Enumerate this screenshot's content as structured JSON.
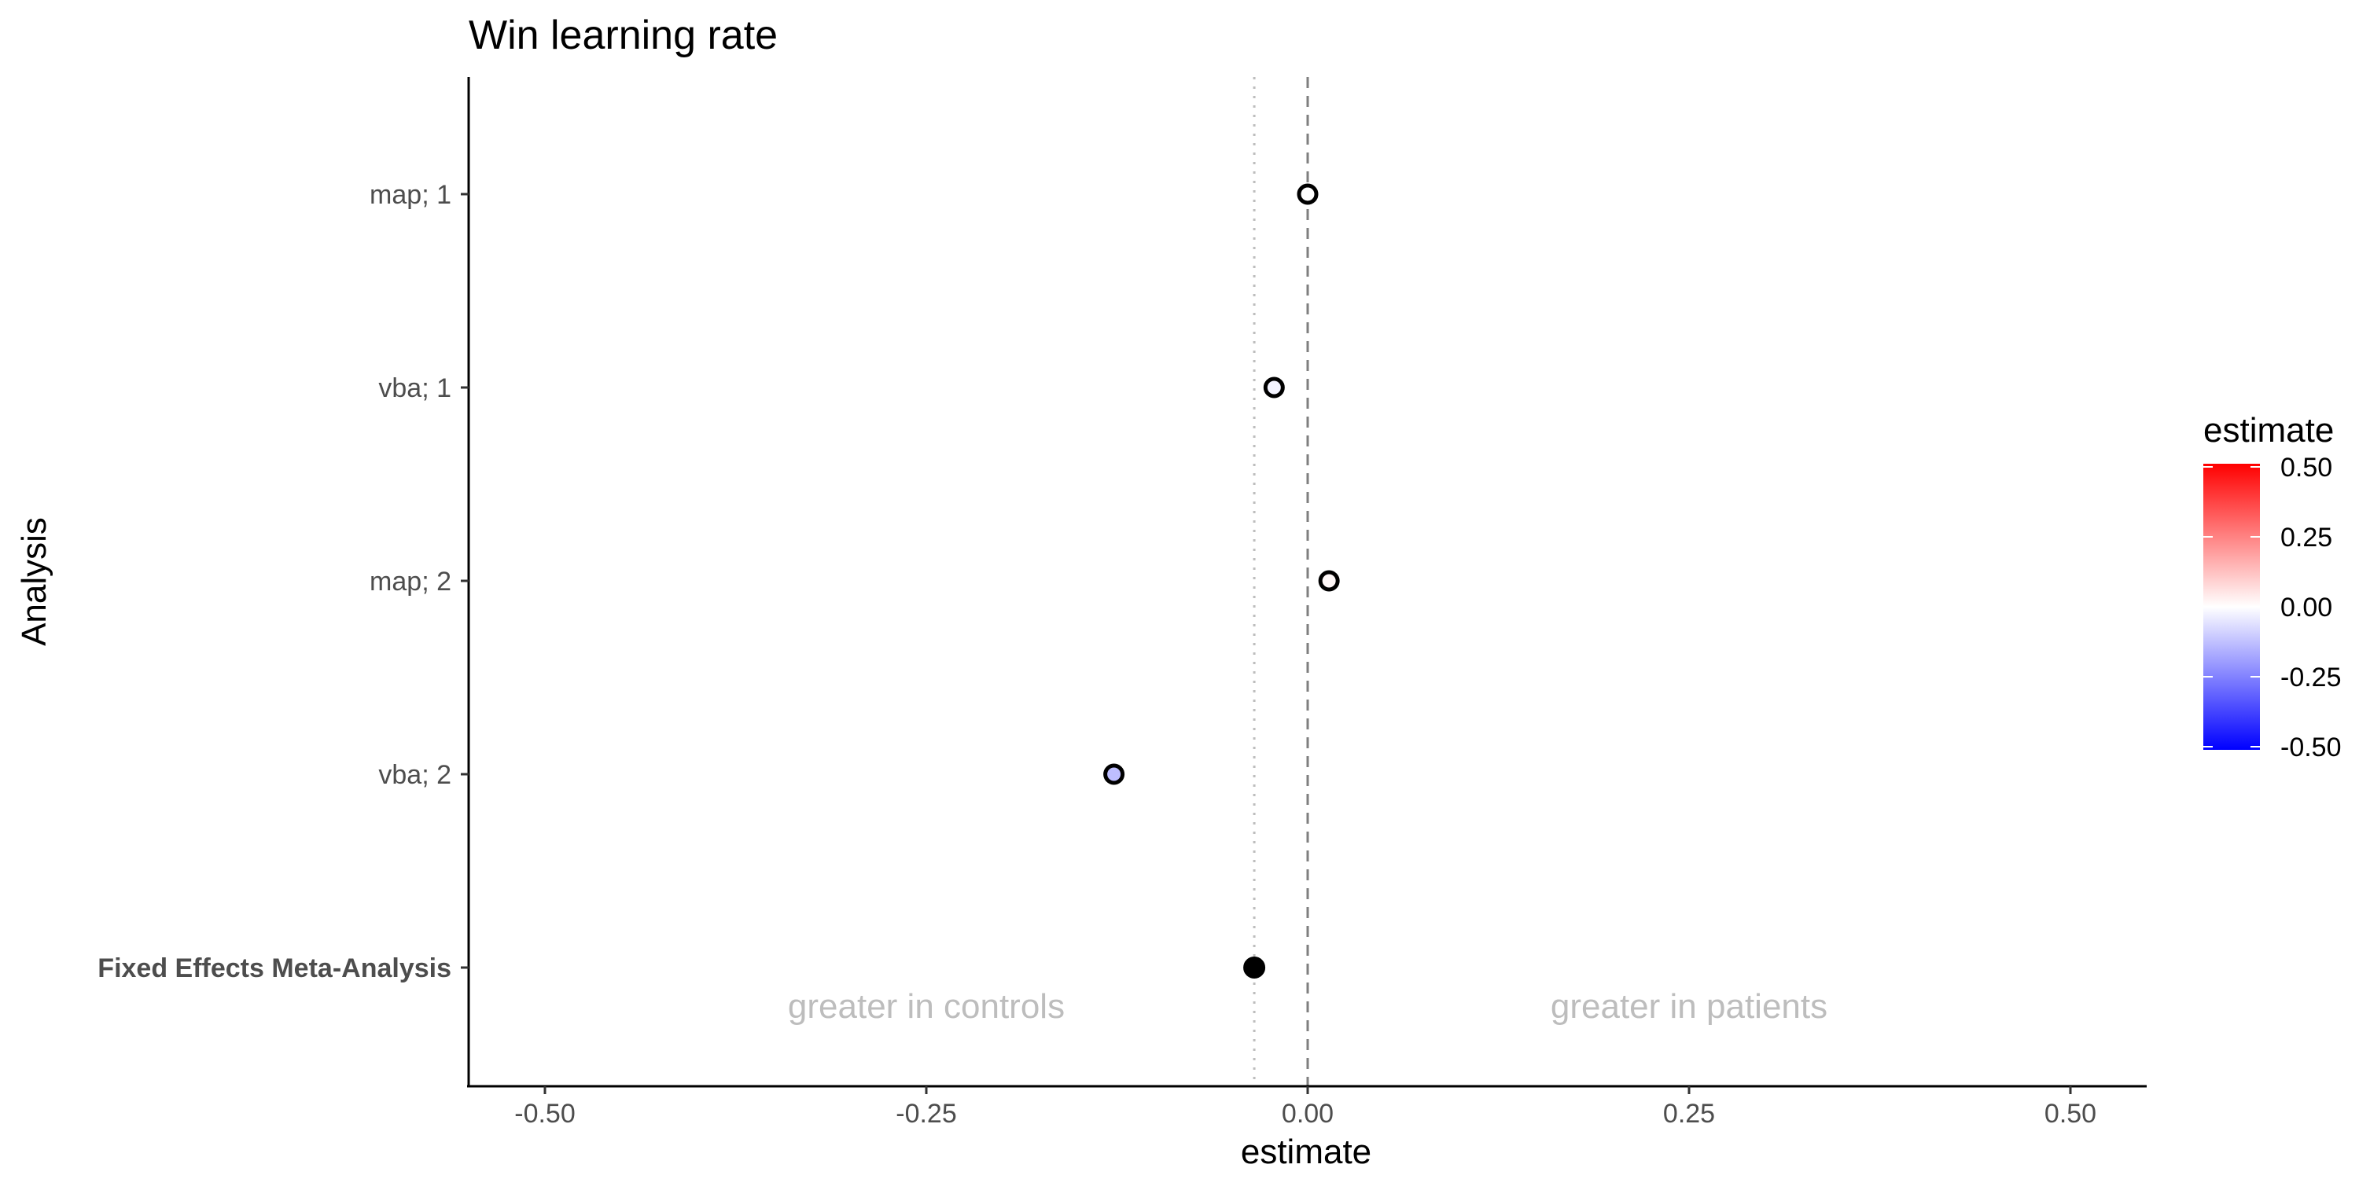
{
  "chart_data": {
    "type": "scatter",
    "title": "Win learning rate",
    "xlabel": "estimate",
    "ylabel": "Analysis",
    "xlim": [
      -0.55,
      0.55
    ],
    "x_ticks": [
      -0.5,
      -0.25,
      0,
      0.25,
      0.5
    ],
    "x_tick_labels": [
      "-0.50",
      "-0.25",
      "0.00",
      "0.25",
      "0.50"
    ],
    "categories": [
      "map; 1",
      "vba; 1",
      "map; 2",
      "vba; 2",
      "Fixed Effects Meta-Analysis"
    ],
    "summary_category": "Fixed Effects Meta-Analysis",
    "points": [
      {
        "label": "map; 1",
        "x": 0.0
      },
      {
        "label": "vba; 1",
        "x": -0.022
      },
      {
        "label": "map; 2",
        "x": 0.014
      },
      {
        "label": "vba; 2",
        "x": -0.127
      },
      {
        "label": "Fixed Effects Meta-Analysis",
        "x": -0.035
      }
    ],
    "reference_lines": [
      {
        "x": 0.0,
        "style": "dashed",
        "color": "#7f7f7f"
      },
      {
        "x": -0.035,
        "style": "dotted",
        "color": "#bdbdbd"
      }
    ],
    "annotations": [
      {
        "text": "greater in controls",
        "x": -0.25
      },
      {
        "text": "greater in patients",
        "x": 0.25
      }
    ],
    "legend": {
      "title": "estimate",
      "position": "right",
      "range": [
        -0.5,
        0.5
      ],
      "ticks": [
        0.5,
        0.25,
        0.0,
        -0.25,
        -0.5
      ],
      "tick_labels": [
        "0.50",
        "0.25",
        "0.00",
        "-0.25",
        "-0.50"
      ],
      "colors": {
        "low": "#0000ff",
        "mid": "#ffffff",
        "high": "#ff0000"
      }
    },
    "grid": false
  }
}
